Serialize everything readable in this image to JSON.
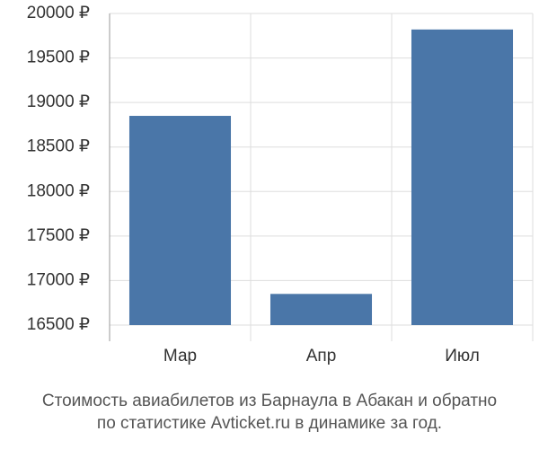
{
  "chart_data": {
    "type": "bar",
    "title": [
      "Стоимость авиабилетов из Барнаула в Абакан и обратно",
      "по статистике Avticket.ru в динамике за год."
    ],
    "categories": [
      "Мар",
      "Апр",
      "Июл"
    ],
    "values": [
      18850,
      16850,
      19820
    ],
    "color": "#4a76a8",
    "ylim": [
      16500,
      20000
    ],
    "yticks": [
      {
        "value": 16500,
        "label": "16500 ₽"
      },
      {
        "value": 17000,
        "label": "17000 ₽"
      },
      {
        "value": 17500,
        "label": "17500 ₽"
      },
      {
        "value": 18000,
        "label": "18000 ₽"
      },
      {
        "value": 18500,
        "label": "18500 ₽"
      },
      {
        "value": 19000,
        "label": "19000 ₽"
      },
      {
        "value": 19500,
        "label": "19500 ₽"
      },
      {
        "value": 20000,
        "label": "20000 ₽"
      }
    ],
    "grid": true
  }
}
